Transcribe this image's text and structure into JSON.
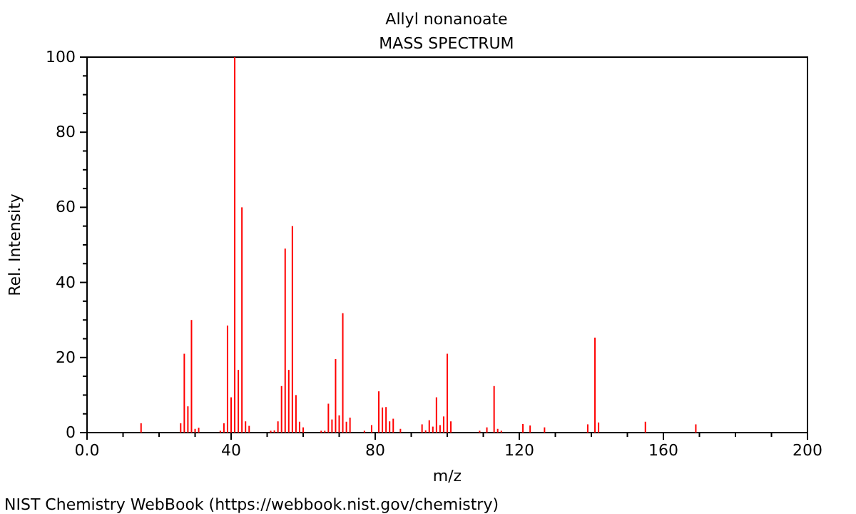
{
  "chart_data": {
    "type": "bar",
    "title": "Allyl nonanoate",
    "subtitle": "MASS SPECTRUM",
    "xlabel": "m/z",
    "ylabel": "Rel. Intensity",
    "annotations": [
      "NIST Chemistry WebBook (https://webbook.nist.gov/chemistry)"
    ],
    "x": [
      15,
      26,
      27,
      28,
      29,
      30,
      31,
      37,
      38,
      39,
      40,
      41,
      42,
      43,
      44,
      45,
      51,
      52,
      53,
      54,
      55,
      56,
      57,
      58,
      59,
      60,
      65,
      66,
      67,
      68,
      69,
      70,
      71,
      72,
      73,
      77,
      79,
      81,
      82,
      83,
      84,
      85,
      87,
      93,
      94,
      95,
      96,
      97,
      98,
      99,
      100,
      101,
      109,
      111,
      113,
      114,
      115,
      121,
      123,
      127,
      139,
      141,
      142,
      155,
      169
    ],
    "values": [
      2.5,
      2.5,
      21,
      7,
      30,
      1,
      1.3,
      0.5,
      2.5,
      28.5,
      9.4,
      100,
      16.7,
      60,
      3,
      1.8,
      0.5,
      0.6,
      3,
      12.4,
      49,
      16.7,
      55,
      10,
      2.9,
      1.4,
      0.5,
      0.5,
      7.7,
      3.5,
      19.6,
      4.6,
      31.8,
      2.9,
      4,
      0.5,
      2,
      11,
      6.7,
      6.8,
      3,
      3.7,
      1,
      2.2,
      0.6,
      3.3,
      1.6,
      9.4,
      2,
      4.3,
      21,
      3,
      0.5,
      1.4,
      12.4,
      1,
      0.5,
      2.3,
      1.9,
      1.4,
      2.2,
      25.3,
      2.7,
      2.9,
      2.2
    ],
    "color": "#ff0000",
    "xlim": [
      0,
      200
    ],
    "xticks": [
      {
        "value": 0,
        "label": "0.0"
      },
      {
        "value": 10,
        "label": null
      },
      {
        "value": 20,
        "label": null
      },
      {
        "value": 30,
        "label": null
      },
      40,
      {
        "value": 50,
        "label": null
      },
      {
        "value": 60,
        "label": null
      },
      {
        "value": 70,
        "label": null
      },
      80,
      {
        "value": 90,
        "label": null
      },
      {
        "value": 100,
        "label": null
      },
      {
        "value": 110,
        "label": null
      },
      120,
      {
        "value": 130,
        "label": null
      },
      {
        "value": 140,
        "label": null
      },
      {
        "value": 150,
        "label": null
      },
      160,
      {
        "value": 170,
        "label": null
      },
      {
        "value": 180,
        "label": null
      },
      {
        "value": 190,
        "label": null
      },
      200
    ],
    "ylim": [
      0,
      100
    ],
    "yticks": [
      0,
      {
        "value": 5,
        "label": null
      },
      {
        "value": 10,
        "label": null
      },
      {
        "value": 15,
        "label": null
      },
      20,
      {
        "value": 25,
        "label": null
      },
      {
        "value": 30,
        "label": null
      },
      {
        "value": 35,
        "label": null
      },
      40,
      {
        "value": 45,
        "label": null
      },
      {
        "value": 50,
        "label": null
      },
      {
        "value": 55,
        "label": null
      },
      60,
      {
        "value": 65,
        "label": null
      },
      {
        "value": 70,
        "label": null
      },
      {
        "value": 75,
        "label": null
      },
      80,
      {
        "value": 85,
        "label": null
      },
      {
        "value": 90,
        "label": null
      },
      {
        "value": 95,
        "label": null
      },
      100
    ]
  }
}
